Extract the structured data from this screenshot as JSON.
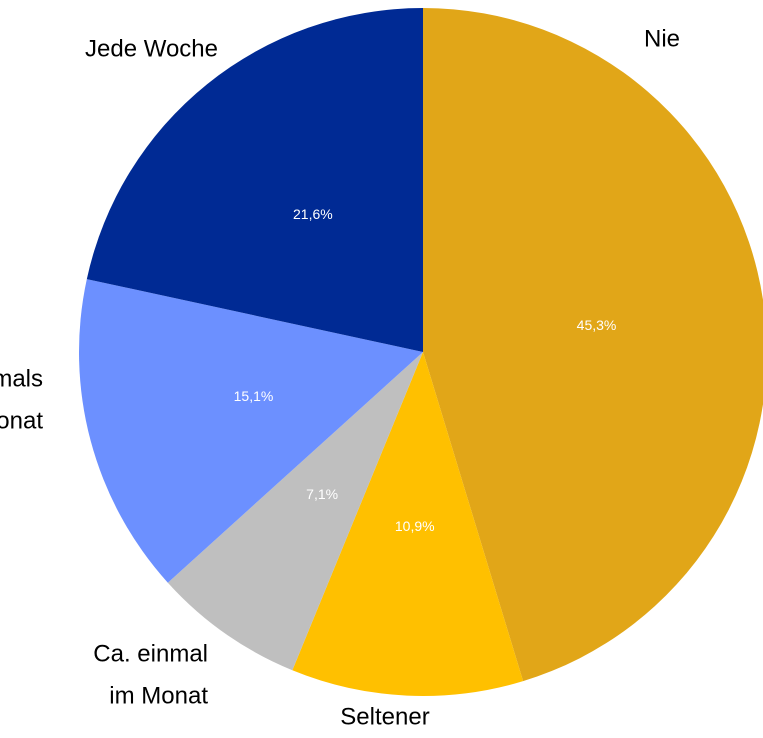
{
  "chart_data": {
    "type": "pie",
    "categories": [
      [
        "Nie"
      ],
      [
        "Seltener"
      ],
      [
        "Ca. einmal",
        "im Monat"
      ],
      [
        "Mehrmals",
        "im Monat"
      ],
      [
        "Jede Woche"
      ]
    ],
    "values": [
      45.3,
      10.9,
      7.1,
      15.1,
      21.6
    ],
    "value_labels": [
      "45,3%",
      "10,9%",
      "7,1%",
      "15,1%",
      "21,6%"
    ],
    "colors": [
      "#E1A618",
      "#FFC000",
      "#BFBFBF",
      "#6C90FF",
      "#002A94"
    ]
  }
}
